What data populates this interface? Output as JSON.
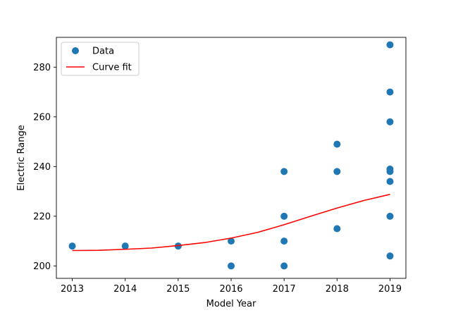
{
  "chart_data": {
    "type": "scatter",
    "xlabel": "Model Year",
    "ylabel": "Electric Range",
    "xlim": [
      2012.7,
      2019.3
    ],
    "ylim": [
      195,
      292
    ],
    "xticks": [
      2013,
      2014,
      2015,
      2016,
      2017,
      2018,
      2019
    ],
    "yticks": [
      200,
      220,
      240,
      260,
      280
    ],
    "grid": false,
    "legend_position": "top-left",
    "series": [
      {
        "name": "Data",
        "kind": "scatter",
        "color": "#1f77b4",
        "points": [
          [
            2013,
            208
          ],
          [
            2014,
            208
          ],
          [
            2015,
            208
          ],
          [
            2016,
            210
          ],
          [
            2016,
            200
          ],
          [
            2017,
            238
          ],
          [
            2017,
            220
          ],
          [
            2017,
            210
          ],
          [
            2017,
            200
          ],
          [
            2018,
            249
          ],
          [
            2018,
            238
          ],
          [
            2018,
            215
          ],
          [
            2019,
            289
          ],
          [
            2019,
            270
          ],
          [
            2019,
            258
          ],
          [
            2019,
            239
          ],
          [
            2019,
            238
          ],
          [
            2019,
            234
          ],
          [
            2019,
            220
          ],
          [
            2019,
            204
          ]
        ]
      },
      {
        "name": "Curve fit",
        "kind": "line",
        "color": "#ff0000",
        "points": [
          [
            2013,
            206.2
          ],
          [
            2013.5,
            206.3
          ],
          [
            2014,
            206.7
          ],
          [
            2014.5,
            207.2
          ],
          [
            2015,
            208.2
          ],
          [
            2015.5,
            209.4
          ],
          [
            2016,
            211.2
          ],
          [
            2016.5,
            213.5
          ],
          [
            2017,
            216.6
          ],
          [
            2017.5,
            220.0
          ],
          [
            2018,
            223.3
          ],
          [
            2018.5,
            226.3
          ],
          [
            2019,
            228.8
          ]
        ]
      }
    ]
  }
}
